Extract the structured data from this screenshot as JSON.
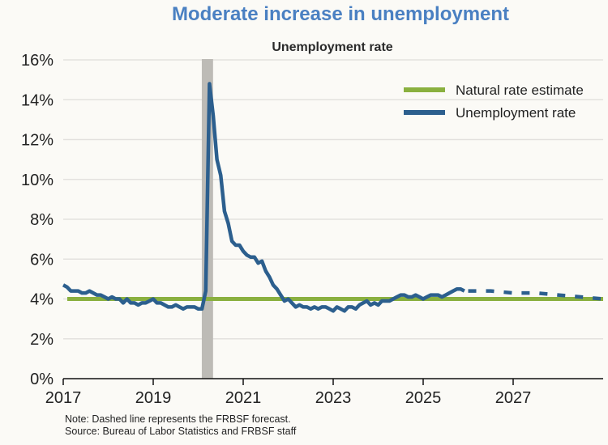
{
  "chart_data": {
    "type": "line",
    "title": "Moderate increase in unemployment",
    "subtitle": "Unemployment rate",
    "xlabel": "",
    "ylabel": "",
    "xlim": [
      2017,
      2029
    ],
    "ylim": [
      0,
      16
    ],
    "x_ticks": [
      "2017",
      "2019",
      "2021",
      "2023",
      "2025",
      "2027"
    ],
    "x_tick_values": [
      2017,
      2019,
      2021,
      2023,
      2025,
      2027
    ],
    "y_ticks": [
      "0%",
      "2%",
      "4%",
      "6%",
      "8%",
      "10%",
      "12%",
      "14%",
      "16%"
    ],
    "y_tick_values": [
      0,
      2,
      4,
      6,
      8,
      10,
      12,
      14,
      16
    ],
    "grid": "horizontal",
    "legend_position": "top-right",
    "recession_shading": {
      "start": 2020.08,
      "end": 2020.33,
      "color": "#bdbbb6"
    },
    "series": [
      {
        "name": "Natural rate estimate",
        "color": "#8ab03f",
        "x": [
          2017,
          2029
        ],
        "values": [
          4.0,
          4.0
        ]
      },
      {
        "name": "Unemployment rate",
        "color": "#2c5f8e",
        "start": "2017-01",
        "frequency": "monthly",
        "values": [
          4.7,
          4.6,
          4.4,
          4.4,
          4.4,
          4.3,
          4.3,
          4.4,
          4.3,
          4.2,
          4.2,
          4.1,
          4.0,
          4.1,
          4.0,
          4.0,
          3.8,
          4.0,
          3.8,
          3.8,
          3.7,
          3.8,
          3.8,
          3.9,
          4.0,
          3.8,
          3.8,
          3.7,
          3.6,
          3.6,
          3.7,
          3.6,
          3.5,
          3.6,
          3.6,
          3.6,
          3.5,
          3.5,
          4.4,
          14.8,
          13.2,
          11.0,
          10.2,
          8.4,
          7.8,
          6.9,
          6.7,
          6.7,
          6.4,
          6.2,
          6.1,
          6.1,
          5.8,
          5.9,
          5.4,
          5.1,
          4.7,
          4.5,
          4.2,
          3.9,
          4.0,
          3.8,
          3.6,
          3.7,
          3.6,
          3.6,
          3.5,
          3.6,
          3.5,
          3.6,
          3.6,
          3.5,
          3.4,
          3.6,
          3.5,
          3.4,
          3.6,
          3.6,
          3.5,
          3.7,
          3.8,
          3.9,
          3.7,
          3.8,
          3.7,
          3.9,
          3.9,
          3.9,
          4.0,
          4.1,
          4.2,
          4.2,
          4.1,
          4.1,
          4.2,
          4.1,
          4.0,
          4.1,
          4.2,
          4.2,
          4.2,
          4.1,
          4.2,
          4.3,
          4.4,
          4.5,
          4.5,
          4.4
        ]
      },
      {
        "name": "FRBSF forecast",
        "color": "#2c5f8e",
        "style": "dashed",
        "x": [
          2026.0,
          2026.5,
          2027.0,
          2027.5,
          2028.0,
          2028.5,
          2029.0
        ],
        "values": [
          4.4,
          4.4,
          4.3,
          4.3,
          4.2,
          4.1,
          4.0
        ]
      }
    ],
    "legend": [
      "Natural rate estimate",
      "Unemployment rate"
    ],
    "notes": [
      "Note: Dashed line represents the FRBSF forecast.",
      "Source: Bureau of Labor Statistics and FRBSF staff"
    ]
  }
}
